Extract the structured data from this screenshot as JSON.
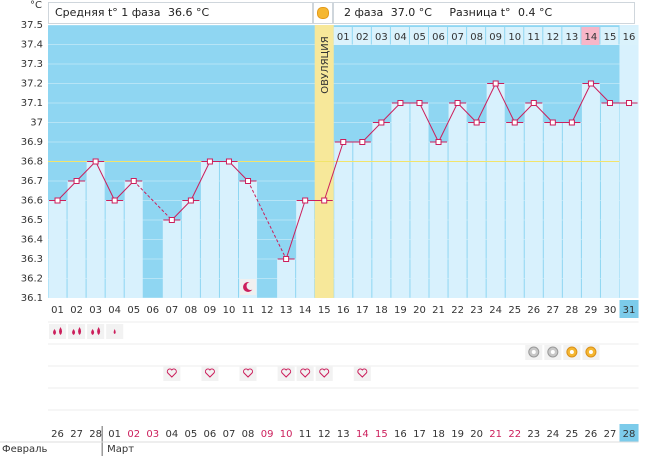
{
  "header": {
    "unit": "°C",
    "phase1_label": "Средняя t° 1 фаза",
    "phase1_value": "36.6 °C",
    "phase2_label": "2 фаза",
    "phase2_value": "37.0 °C",
    "diff_label": "Разница t°",
    "diff_value": "0.4 °C"
  },
  "ovulation_label": "ОВУЛЯЦИЯ",
  "dpo_labels": [
    "01",
    "02",
    "03",
    "04",
    "05",
    "06",
    "07",
    "08",
    "09",
    "10",
    "11",
    "12",
    "13",
    "14",
    "15",
    "16"
  ],
  "dpo_highlight": "14",
  "cycle_days": [
    "01",
    "02",
    "03",
    "04",
    "05",
    "06",
    "07",
    "08",
    "09",
    "10",
    "11",
    "12",
    "13",
    "14",
    "15",
    "16",
    "17",
    "18",
    "19",
    "20",
    "21",
    "22",
    "23",
    "24",
    "25",
    "26",
    "27",
    "28",
    "29",
    "30",
    "31"
  ],
  "cycle_day_highlight": "31",
  "dates": [
    "26",
    "27",
    "28",
    "01",
    "02",
    "03",
    "04",
    "05",
    "06",
    "07",
    "08",
    "09",
    "10",
    "11",
    "12",
    "13",
    "14",
    "15",
    "16",
    "17",
    "18",
    "19",
    "20",
    "21",
    "22",
    "23",
    "24",
    "25",
    "26",
    "27",
    "28"
  ],
  "date_red_indices": [
    4,
    5,
    11,
    12,
    16,
    17,
    23,
    24
  ],
  "months": {
    "feb": "Февраль",
    "mar": "Март"
  },
  "colors": {
    "bar": "#d8f1fd",
    "bg_phase": "#8fd6f2",
    "ovulation": "#f7e89a",
    "line": "#cc1f5c",
    "cover_line": "#f2e46b",
    "highlight_cell": "#f7b6c8",
    "day31": "#7ccbea",
    "red_date": "#cc1f5c"
  },
  "chart_data": {
    "type": "line",
    "x": [
      "01",
      "02",
      "03",
      "04",
      "05",
      "06",
      "07",
      "08",
      "09",
      "10",
      "11",
      "12",
      "13",
      "14",
      "15",
      "16",
      "17",
      "18",
      "19",
      "20",
      "21",
      "22",
      "23",
      "24",
      "25",
      "26",
      "27",
      "28",
      "29",
      "30",
      "31"
    ],
    "values": [
      36.6,
      36.7,
      36.8,
      36.6,
      36.7,
      null,
      36.5,
      36.6,
      36.8,
      36.8,
      36.7,
      null,
      36.3,
      36.6,
      36.6,
      36.9,
      36.9,
      37.0,
      37.1,
      37.1,
      36.9,
      37.1,
      37.0,
      37.2,
      37.0,
      37.1,
      37.0,
      37.0,
      37.2,
      37.1,
      37.1
    ],
    "ylim": [
      36.1,
      37.5
    ],
    "yticks": [
      "36.1",
      "36.2",
      "36.3",
      "36.4",
      "36.5",
      "36.6",
      "36.7",
      "36.8",
      "36.9",
      "37",
      "37.1",
      "37.2",
      "37.3",
      "37.4",
      "37.5"
    ],
    "cover_line": 36.8,
    "ovulation_day": 15,
    "gap_days": [
      6,
      12
    ],
    "moon_day": 11
  },
  "icon_rows": {
    "flow": [
      {
        "day": 1,
        "icon": "drop-large-icon"
      },
      {
        "day": 2,
        "icon": "drop-large-icon"
      },
      {
        "day": 3,
        "icon": "drop-large-icon"
      },
      {
        "day": 4,
        "icon": "drop-small-icon"
      }
    ],
    "tests": [
      {
        "day": 26,
        "icon": "test-negative-icon"
      },
      {
        "day": 27,
        "icon": "test-negative-icon"
      },
      {
        "day": 28,
        "icon": "test-positive-icon"
      },
      {
        "day": 29,
        "icon": "test-positive-icon"
      }
    ],
    "hearts": [
      7,
      9,
      11,
      13,
      14,
      15,
      17
    ]
  }
}
